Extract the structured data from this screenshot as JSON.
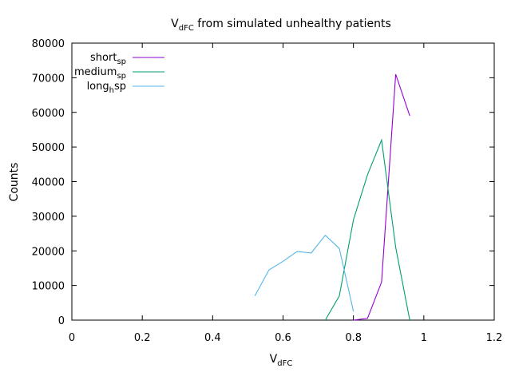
{
  "chart_data": {
    "type": "line",
    "title": {
      "main": "V",
      "sub": "dFC",
      "rest": " from simulated unhealthy patients"
    },
    "xlabel": {
      "main": "V",
      "sub": "dFC"
    },
    "ylabel": "Counts",
    "xlim": [
      0,
      1.2
    ],
    "ylim": [
      0,
      80000
    ],
    "xticks": [
      "0",
      "0.2",
      "0.4",
      "0.6",
      "0.8",
      "1",
      "1.2"
    ],
    "yticks": [
      "0",
      "10000",
      "20000",
      "30000",
      "40000",
      "50000",
      "60000",
      "70000",
      "80000"
    ],
    "grid": false,
    "legend_position": "top-left",
    "series": [
      {
        "name": {
          "main": "short",
          "sub": "sp"
        },
        "color": "#9400d3",
        "points": [
          [
            0.8,
            0
          ],
          [
            0.84,
            500
          ],
          [
            0.88,
            11000
          ],
          [
            0.92,
            71000
          ],
          [
            0.96,
            59000
          ]
        ]
      },
      {
        "name": {
          "main": "medium",
          "sub": "sp"
        },
        "color": "#009e73",
        "points": [
          [
            0.72,
            0
          ],
          [
            0.76,
            7000
          ],
          [
            0.8,
            29000
          ],
          [
            0.84,
            42000
          ],
          [
            0.88,
            52000
          ],
          [
            0.92,
            21000
          ],
          [
            0.96,
            0
          ]
        ]
      },
      {
        "name": {
          "main": "long",
          "sub": "h",
          "rest": "sp"
        },
        "color": "#56b4e9",
        "points": [
          [
            0.52,
            7000
          ],
          [
            0.56,
            14500
          ],
          [
            0.6,
            17000
          ],
          [
            0.64,
            19800
          ],
          [
            0.68,
            19400
          ],
          [
            0.72,
            24500
          ],
          [
            0.76,
            20700
          ],
          [
            0.8,
            2500
          ]
        ]
      }
    ]
  }
}
